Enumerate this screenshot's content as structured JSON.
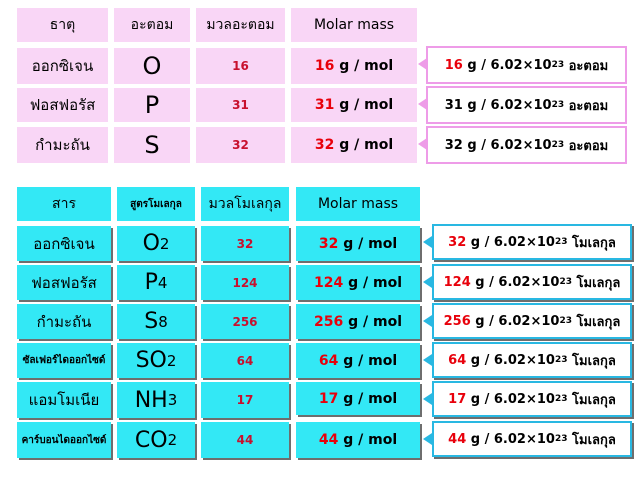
{
  "elements_table": {
    "headers": [
      "ธาตุ",
      "อะตอม",
      "มวลอะตอม",
      "Molar mass"
    ],
    "rows": [
      {
        "name": "ออกซิเจน",
        "symbol": "O",
        "mass": "16",
        "molar_num": "16",
        "molar_unit": "g / mol",
        "callout_num": "16",
        "callout_rest": "g / 6.02",
        "callout_x": "×",
        "callout_base": "10",
        "callout_exp": "23",
        "callout_unit": "อะตอม"
      },
      {
        "name": "ฟอสฟอรัส",
        "symbol": "P",
        "mass": "31",
        "molar_num": "31",
        "molar_unit": "g / mol",
        "callout_num": "31",
        "callout_rest": "g / 6.02",
        "callout_x": "×",
        "callout_base": "10",
        "callout_exp": "23",
        "callout_unit": "อะตอม"
      },
      {
        "name": "กำมะถัน",
        "symbol": "S",
        "mass": "32",
        "molar_num": "32",
        "molar_unit": "g / mol",
        "callout_num": "32",
        "callout_rest": "g / 6.02",
        "callout_x": "×",
        "callout_base": "10",
        "callout_exp": "23",
        "callout_unit": "อะตอม"
      }
    ]
  },
  "molecules_table": {
    "headers": [
      "สาร",
      "สูตรโมเลกุล",
      "มวลโมเลกุล",
      "Molar mass"
    ],
    "rows": [
      {
        "name": "ออกซิเจน",
        "formula_main": "O",
        "formula_sub": "2",
        "mass": "32",
        "molar_num": "32",
        "molar_unit": "g / mol",
        "callout_num": "32",
        "callout_rest": "g / 6.02",
        "callout_x": "×",
        "callout_base": "10",
        "callout_exp": "23",
        "callout_unit": "โมเลกุล"
      },
      {
        "name": "ฟอสฟอรัส",
        "formula_main": "P",
        "formula_sub": "4",
        "mass": "124",
        "molar_num": "124",
        "molar_unit": "g / mol",
        "callout_num": "124",
        "callout_rest": "g / 6.02",
        "callout_x": "×",
        "callout_base": "10",
        "callout_exp": "23",
        "callout_unit": "โมเลกุล"
      },
      {
        "name": "กำมะถัน",
        "formula_main": "S",
        "formula_sub": "8",
        "mass": "256",
        "molar_num": "256",
        "molar_unit": "g / mol",
        "callout_num": "256",
        "callout_rest": "g / 6.02",
        "callout_x": "×",
        "callout_base": "10",
        "callout_exp": "23",
        "callout_unit": "โมเลกุล"
      },
      {
        "name": "ซัลเฟอร์ไดออกไซด์",
        "formula_main": "SO",
        "formula_sub": "2",
        "mass": "64",
        "molar_num": "64",
        "molar_unit": "g / mol",
        "callout_num": "64",
        "callout_rest": "g / 6.02",
        "callout_x": "×",
        "callout_base": "10",
        "callout_exp": "23",
        "callout_unit": "โมเลกุล"
      },
      {
        "name": "แอมโมเนีย",
        "formula_main": "NH",
        "formula_sub": "3",
        "mass": "17",
        "molar_num": "17",
        "molar_unit": "g / mol",
        "callout_num": "17",
        "callout_rest": "g / 6.02",
        "callout_x": "×",
        "callout_base": "10",
        "callout_exp": "23",
        "callout_unit": "โมเลกุล"
      },
      {
        "name": "คาร์บอนไดออกไซด์",
        "formula_main": "CO",
        "formula_sub": "2",
        "mass": "44",
        "molar_num": "44",
        "molar_unit": "g / mol",
        "callout_num": "44",
        "callout_rest": "g / 6.02",
        "callout_x": "×",
        "callout_base": "10",
        "callout_exp": "23",
        "callout_unit": "โมเลกุล"
      }
    ]
  }
}
